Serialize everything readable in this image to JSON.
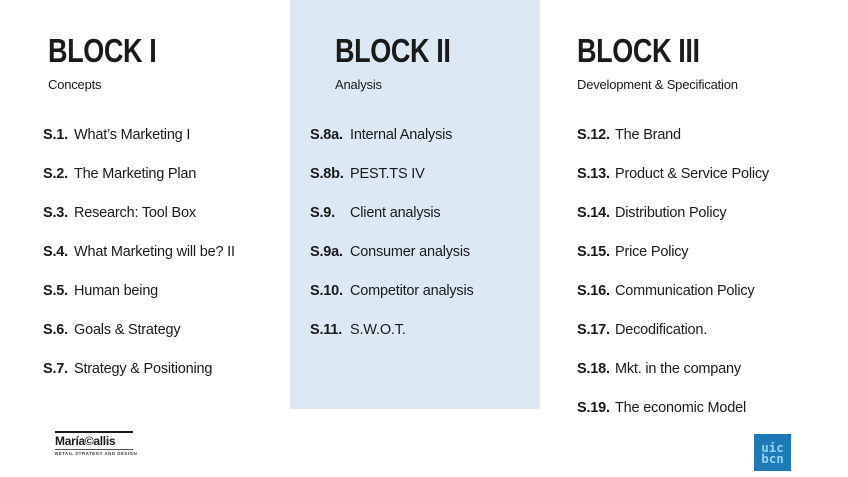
{
  "blocks": [
    {
      "title": "BLOCK I",
      "subtitle": "Concepts",
      "items": [
        {
          "num": "S.1.",
          "label": "What’s Marketing I"
        },
        {
          "num": "S.2.",
          "label": "The Marketing Plan"
        },
        {
          "num": "S.3.",
          "label": "Research: Tool Box"
        },
        {
          "num": "S.4.",
          "label": "What Marketing will be? II"
        },
        {
          "num": "S.5.",
          "label": "Human being"
        },
        {
          "num": "S.6.",
          "label": "Goals & Strategy"
        },
        {
          "num": "S.7.",
          "label": "Strategy & Positioning"
        }
      ]
    },
    {
      "title": "BLOCK II",
      "subtitle": "Analysis",
      "items": [
        {
          "num": "S.8a.",
          "label": "Internal Analysis"
        },
        {
          "num": "S.8b.",
          "label": "PEST.TS IV"
        },
        {
          "num": "S.9.",
          "label": "Client analysis"
        },
        {
          "num": "S.9a.",
          "label": "Consumer analysis"
        },
        {
          "num": "S.10.",
          "label": "Competitor analysis"
        },
        {
          "num": "S.11.",
          "label": "S.W.O.T."
        }
      ]
    },
    {
      "title": "BLOCK III",
      "subtitle": "Development & Specification",
      "items": [
        {
          "num": "S.12.",
          "label": "The Brand"
        },
        {
          "num": "S.13.",
          "label": "Product & Service Policy"
        },
        {
          "num": "S.14.",
          "label": "Distribution Policy"
        },
        {
          "num": "S.15.",
          "label": "Price Policy"
        },
        {
          "num": "S.16.",
          "label": "Communication Policy"
        },
        {
          "num": "S.17.",
          "label": "Decodification."
        },
        {
          "num": "S.18.",
          "label": "Mkt.  in the company"
        },
        {
          "num": "S.19.",
          "label": "The economic Model"
        }
      ]
    }
  ],
  "footer": {
    "maria_logo": {
      "name": "María©allis",
      "tagline": "RETAIL STRATEGY AND DESIGN"
    },
    "uic_logo": {
      "line1": "uic",
      "line2": "bcn"
    }
  },
  "colors": {
    "block2_panel": "#dce9f5",
    "text": "#1a1a1a",
    "uic_logo_bg": "#1d7ab6",
    "uic_logo_text": "#8ed4f2"
  }
}
